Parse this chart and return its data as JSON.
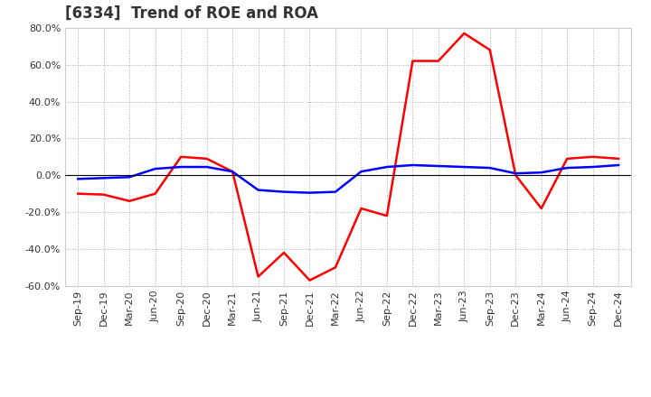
{
  "title": "[6334]  Trend of ROE and ROA",
  "labels": [
    "Sep-19",
    "Dec-19",
    "Mar-20",
    "Jun-20",
    "Sep-20",
    "Dec-20",
    "Mar-21",
    "Jun-21",
    "Sep-21",
    "Dec-21",
    "Mar-22",
    "Jun-22",
    "Sep-22",
    "Dec-22",
    "Mar-23",
    "Jun-23",
    "Sep-23",
    "Dec-23",
    "Mar-24",
    "Jun-24",
    "Sep-24",
    "Dec-24"
  ],
  "roe": [
    -10.0,
    -10.5,
    -14.0,
    -10.0,
    10.0,
    9.0,
    2.0,
    -55.0,
    -42.0,
    -57.0,
    -50.0,
    -18.0,
    -22.0,
    62.0,
    62.0,
    77.0,
    68.0,
    0.0,
    -18.0,
    9.0,
    10.0,
    9.0
  ],
  "roa": [
    -2.0,
    -1.5,
    -1.0,
    3.5,
    4.5,
    4.5,
    2.0,
    -8.0,
    -9.0,
    -9.5,
    -9.0,
    2.0,
    4.5,
    5.5,
    5.0,
    4.5,
    4.0,
    1.0,
    1.5,
    4.0,
    4.5,
    5.5
  ],
  "roe_color": "#ff0000",
  "roa_color": "#0000ff",
  "background_color": "#ffffff",
  "plot_background": "#ffffff",
  "grid_color": "#aaaaaa",
  "ylim": [
    -60.0,
    80.0
  ],
  "yticks": [
    -60.0,
    -40.0,
    -20.0,
    0.0,
    20.0,
    40.0,
    60.0,
    80.0
  ],
  "line_width": 1.8,
  "title_fontsize": 12,
  "tick_fontsize": 8,
  "legend_fontsize": 9,
  "title_color": "#333333",
  "tick_color": "#333333"
}
